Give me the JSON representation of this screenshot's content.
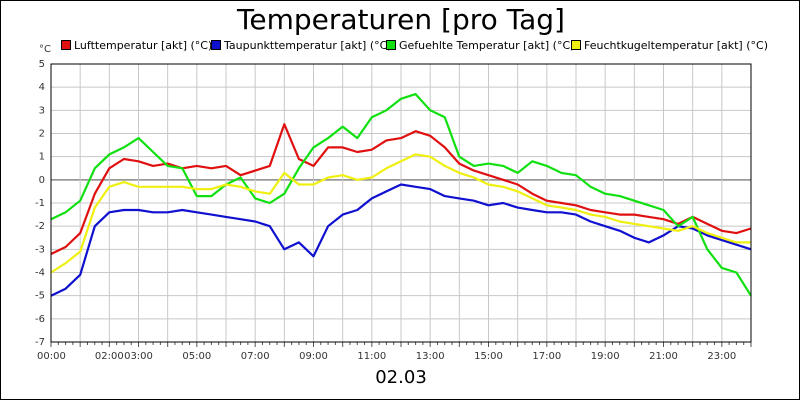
{
  "chart_data": {
    "type": "line",
    "title": "Temperaturen [pro Tag]",
    "xlabel": "02.03",
    "ylabel": "°C",
    "ylim": [
      -7,
      5
    ],
    "yticks": [
      "5",
      "4",
      "3",
      "2",
      "1",
      "0",
      "-1",
      "-2",
      "-3",
      "-4",
      "-5",
      "-6",
      "-7"
    ],
    "xlim_hours": [
      0,
      24
    ],
    "xticks": [
      "00:00",
      "02:00",
      "03:00",
      "05:00",
      "07:00",
      "09:00",
      "11:00",
      "13:00",
      "15:00",
      "17:00",
      "19:00",
      "21:00",
      "23:00"
    ],
    "grid": true,
    "legend_position": "top",
    "x_hours": [
      0,
      0.5,
      1,
      1.5,
      2,
      2.5,
      3,
      3.5,
      4,
      4.5,
      5,
      5.5,
      6,
      6.5,
      7,
      7.5,
      8,
      8.5,
      9,
      9.5,
      10,
      10.5,
      11,
      11.5,
      12,
      12.5,
      13,
      13.5,
      14,
      14.5,
      15,
      15.5,
      16,
      16.5,
      17,
      17.5,
      18,
      18.5,
      19,
      19.5,
      20,
      20.5,
      21,
      21.5,
      22,
      22.5,
      23,
      23.5,
      24
    ],
    "series": [
      {
        "name": "Lufttemperatur [akt] (°C)",
        "color": "#e01010",
        "values": [
          -3.2,
          -2.9,
          -2.3,
          -0.6,
          0.5,
          0.9,
          0.8,
          0.6,
          0.7,
          0.5,
          0.6,
          0.5,
          0.6,
          0.2,
          0.4,
          0.6,
          2.4,
          0.9,
          0.6,
          1.4,
          1.4,
          1.2,
          1.3,
          1.7,
          1.8,
          2.1,
          1.9,
          1.4,
          0.7,
          0.4,
          0.2,
          0.0,
          -0.2,
          -0.6,
          -0.9,
          -1.0,
          -1.1,
          -1.3,
          -1.4,
          -1.5,
          -1.5,
          -1.6,
          -1.7,
          -1.9,
          -1.6,
          -1.9,
          -2.2,
          -2.3,
          -2.1
        ]
      },
      {
        "name": "Taupunkttemperatur [akt] (°C)",
        "color": "#1010d0",
        "values": [
          -5.0,
          -4.7,
          -4.1,
          -2.0,
          -1.4,
          -1.3,
          -1.3,
          -1.4,
          -1.4,
          -1.3,
          -1.4,
          -1.5,
          -1.6,
          -1.7,
          -1.8,
          -2.0,
          -3.0,
          -2.7,
          -3.3,
          -2.0,
          -1.5,
          -1.3,
          -0.8,
          -0.5,
          -0.2,
          -0.3,
          -0.4,
          -0.7,
          -0.8,
          -0.9,
          -1.1,
          -1.0,
          -1.2,
          -1.3,
          -1.4,
          -1.4,
          -1.5,
          -1.8,
          -2.0,
          -2.2,
          -2.5,
          -2.7,
          -2.4,
          -2.0,
          -2.1,
          -2.4,
          -2.6,
          -2.8,
          -3.0
        ]
      },
      {
        "name": "Gefuehlte Temperatur [akt] (°C)",
        "color": "#10e010",
        "values": [
          -1.7,
          -1.4,
          -0.9,
          0.5,
          1.1,
          1.4,
          1.8,
          1.2,
          0.6,
          0.5,
          -0.7,
          -0.7,
          -0.2,
          0.1,
          -0.8,
          -1.0,
          -0.6,
          0.5,
          1.4,
          1.8,
          2.3,
          1.8,
          2.7,
          3.0,
          3.5,
          3.7,
          3.0,
          2.7,
          1.0,
          0.6,
          0.7,
          0.6,
          0.3,
          0.8,
          0.6,
          0.3,
          0.2,
          -0.3,
          -0.6,
          -0.7,
          -0.9,
          -1.1,
          -1.3,
          -2.0,
          -1.6,
          -3.0,
          -3.8,
          -4.0,
          -5.0
        ]
      },
      {
        "name": "Feuchtkugeltemperatur [akt] (°C)",
        "color": "#f0f010",
        "values": [
          -4.0,
          -3.6,
          -3.1,
          -1.2,
          -0.3,
          -0.1,
          -0.3,
          -0.3,
          -0.3,
          -0.3,
          -0.4,
          -0.4,
          -0.2,
          -0.3,
          -0.5,
          -0.6,
          0.3,
          -0.2,
          -0.2,
          0.1,
          0.2,
          0.0,
          0.1,
          0.5,
          0.8,
          1.1,
          1.0,
          0.6,
          0.3,
          0.1,
          -0.2,
          -0.3,
          -0.5,
          -0.8,
          -1.1,
          -1.2,
          -1.3,
          -1.5,
          -1.6,
          -1.8,
          -1.9,
          -2.0,
          -2.1,
          -2.2,
          -2.0,
          -2.3,
          -2.5,
          -2.7,
          -2.7
        ]
      }
    ]
  }
}
